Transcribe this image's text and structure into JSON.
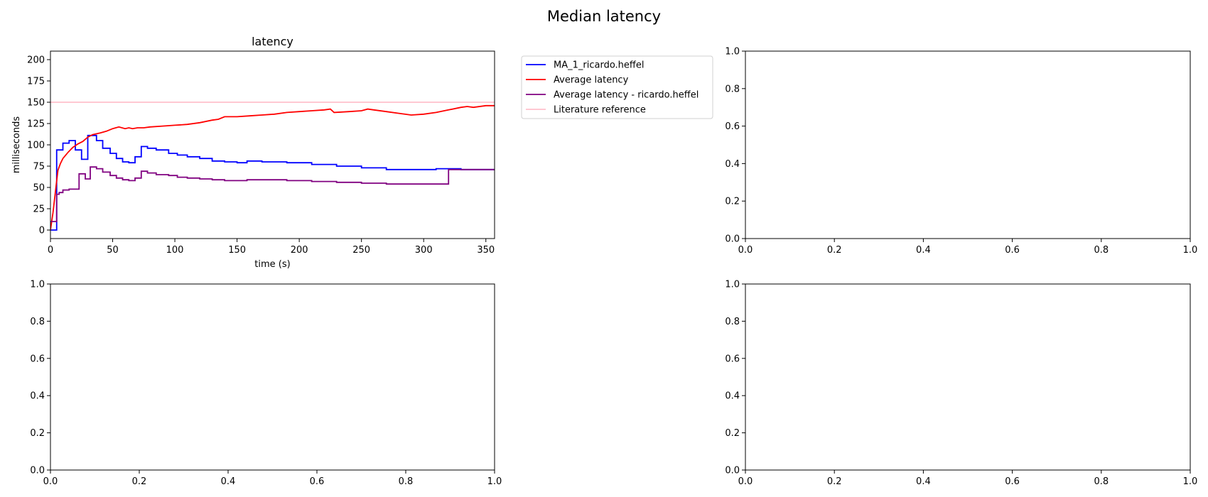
{
  "figure": {
    "suptitle": "Median latency"
  },
  "chart_data": [
    {
      "type": "line",
      "panel": "top-left",
      "title": "latency",
      "xlabel": "time (s)",
      "ylabel": "milliseconds",
      "xlim": [
        0,
        357
      ],
      "ylim": [
        -10,
        210
      ],
      "xticks": [
        0,
        50,
        100,
        150,
        200,
        250,
        300,
        350
      ],
      "yticks": [
        0,
        25,
        50,
        75,
        100,
        125,
        150,
        175,
        200
      ],
      "grid": false,
      "legend": "outside-right",
      "series": [
        {
          "name": "MA_1_ricardo.heffel",
          "color": "#0000ff",
          "step": true,
          "x": [
            0,
            4,
            5,
            10,
            15,
            20,
            25,
            30,
            32,
            37,
            42,
            48,
            53,
            58,
            63,
            68,
            73,
            78,
            85,
            95,
            102,
            110,
            120,
            130,
            140,
            150,
            158,
            170,
            190,
            210,
            230,
            250,
            270,
            290,
            310,
            330,
            357
          ],
          "y": [
            0,
            0,
            94,
            102,
            105,
            94,
            83,
            111,
            111,
            105,
            96,
            90,
            84,
            80,
            79,
            86,
            98,
            96,
            94,
            90,
            88,
            86,
            84,
            81,
            80,
            79,
            81,
            80,
            79,
            77,
            75,
            73,
            71,
            71,
            72,
            71,
            70
          ]
        },
        {
          "name": "Average latency",
          "color": "#ff0000",
          "x": [
            0,
            2,
            4,
            6,
            8,
            10,
            14,
            18,
            22,
            26,
            30,
            34,
            40,
            45,
            50,
            55,
            60,
            63,
            66,
            70,
            75,
            80,
            90,
            100,
            110,
            120,
            130,
            135,
            140,
            150,
            160,
            170,
            180,
            190,
            200,
            210,
            220,
            225,
            228,
            240,
            250,
            255,
            260,
            270,
            280,
            290,
            300,
            310,
            320,
            330,
            335,
            340,
            350,
            357
          ],
          "y": [
            0,
            20,
            45,
            70,
            78,
            84,
            91,
            97,
            101,
            104,
            109,
            112,
            114,
            116,
            119,
            121,
            119,
            120,
            119,
            120,
            120,
            121,
            122,
            123,
            124,
            126,
            129,
            130,
            133,
            133,
            134,
            135,
            136,
            138,
            139,
            140,
            141,
            142,
            138,
            139,
            140,
            142,
            141,
            139,
            137,
            135,
            136,
            138,
            141,
            144,
            145,
            144,
            146,
            146
          ]
        },
        {
          "name": "Average latency - ricardo.heffel",
          "color": "#800080",
          "step": true,
          "x": [
            0,
            3,
            5,
            7,
            10,
            15,
            20,
            23,
            28,
            32,
            37,
            42,
            48,
            53,
            58,
            63,
            68,
            73,
            78,
            85,
            95,
            102,
            110,
            120,
            130,
            140,
            150,
            158,
            170,
            190,
            210,
            230,
            250,
            270,
            290,
            300,
            318,
            320,
            330,
            357
          ],
          "y": [
            10,
            10,
            42,
            44,
            47,
            48,
            48,
            66,
            60,
            74,
            72,
            68,
            64,
            61,
            59,
            58,
            61,
            69,
            67,
            65,
            64,
            62,
            61,
            60,
            59,
            58,
            58,
            59,
            59,
            58,
            57,
            56,
            55,
            54,
            54,
            54,
            54,
            71,
            71,
            70
          ]
        },
        {
          "name": "Literature reference",
          "color": "#ffc0cb",
          "x": [
            0,
            357
          ],
          "y": [
            150,
            150
          ]
        }
      ]
    },
    {
      "type": "line",
      "panel": "top-right",
      "xlim": [
        0,
        1
      ],
      "ylim": [
        0,
        1
      ],
      "xticks": [
        0.0,
        0.2,
        0.4,
        0.6,
        0.8,
        1.0
      ],
      "yticks": [
        0.0,
        0.2,
        0.4,
        0.6,
        0.8,
        1.0
      ],
      "series": []
    },
    {
      "type": "line",
      "panel": "bottom-left",
      "xlim": [
        0,
        1
      ],
      "ylim": [
        0,
        1
      ],
      "xticks": [
        0.0,
        0.2,
        0.4,
        0.6,
        0.8,
        1.0
      ],
      "yticks": [
        0.0,
        0.2,
        0.4,
        0.6,
        0.8,
        1.0
      ],
      "series": []
    },
    {
      "type": "line",
      "panel": "bottom-right",
      "xlim": [
        0,
        1
      ],
      "ylim": [
        0,
        1
      ],
      "xticks": [
        0.0,
        0.2,
        0.4,
        0.6,
        0.8,
        1.0
      ],
      "yticks": [
        0.0,
        0.2,
        0.4,
        0.6,
        0.8,
        1.0
      ],
      "series": []
    }
  ]
}
